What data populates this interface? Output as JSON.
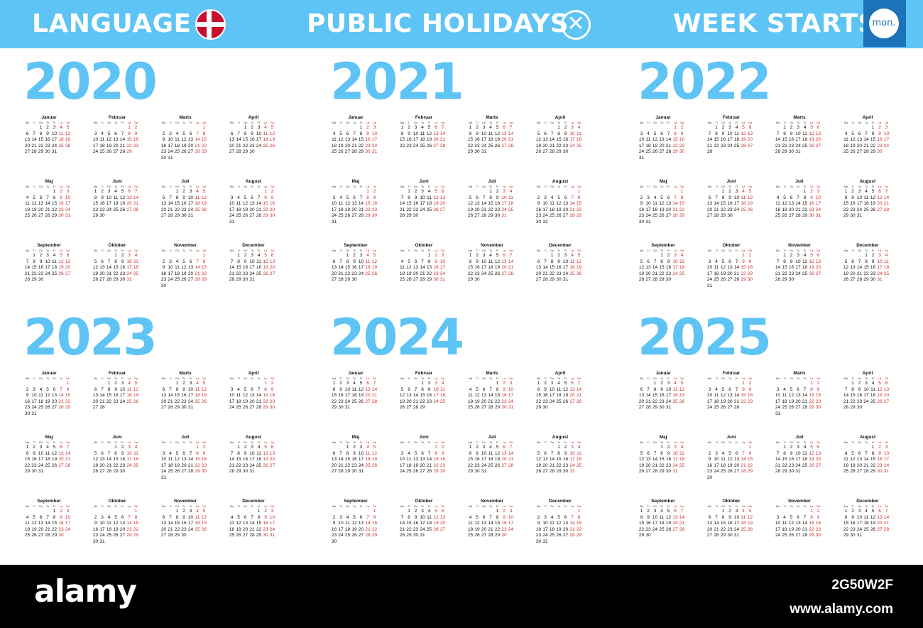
{
  "header": {
    "language_label": "LANGUAGE",
    "flag_icon": "denmark-flag-icon",
    "holidays_label": "PUBLIC HOLIDAYS",
    "holidays_icon": "close-x-icon",
    "week_starts_label": "WEEK STARTS",
    "week_start_value": "mon."
  },
  "calendar": {
    "years": [
      "2020",
      "2021",
      "2022",
      "2023",
      "2024",
      "2025"
    ],
    "months": [
      "Januar",
      "Februar",
      "Marts",
      "April",
      "Maj",
      "Juni",
      "Juli",
      "August",
      "September",
      "Oktober",
      "November",
      "December"
    ],
    "weekdays": [
      "Ma",
      "Ti",
      "On",
      "To",
      "Fr",
      "Lø",
      "Sø"
    ],
    "weekend_color": "#d32a2a",
    "accent_color": "#5ec3f5"
  },
  "footer": {
    "brand": "alamy",
    "image_id": "2G50W2F",
    "url": "www.alamy.com"
  }
}
